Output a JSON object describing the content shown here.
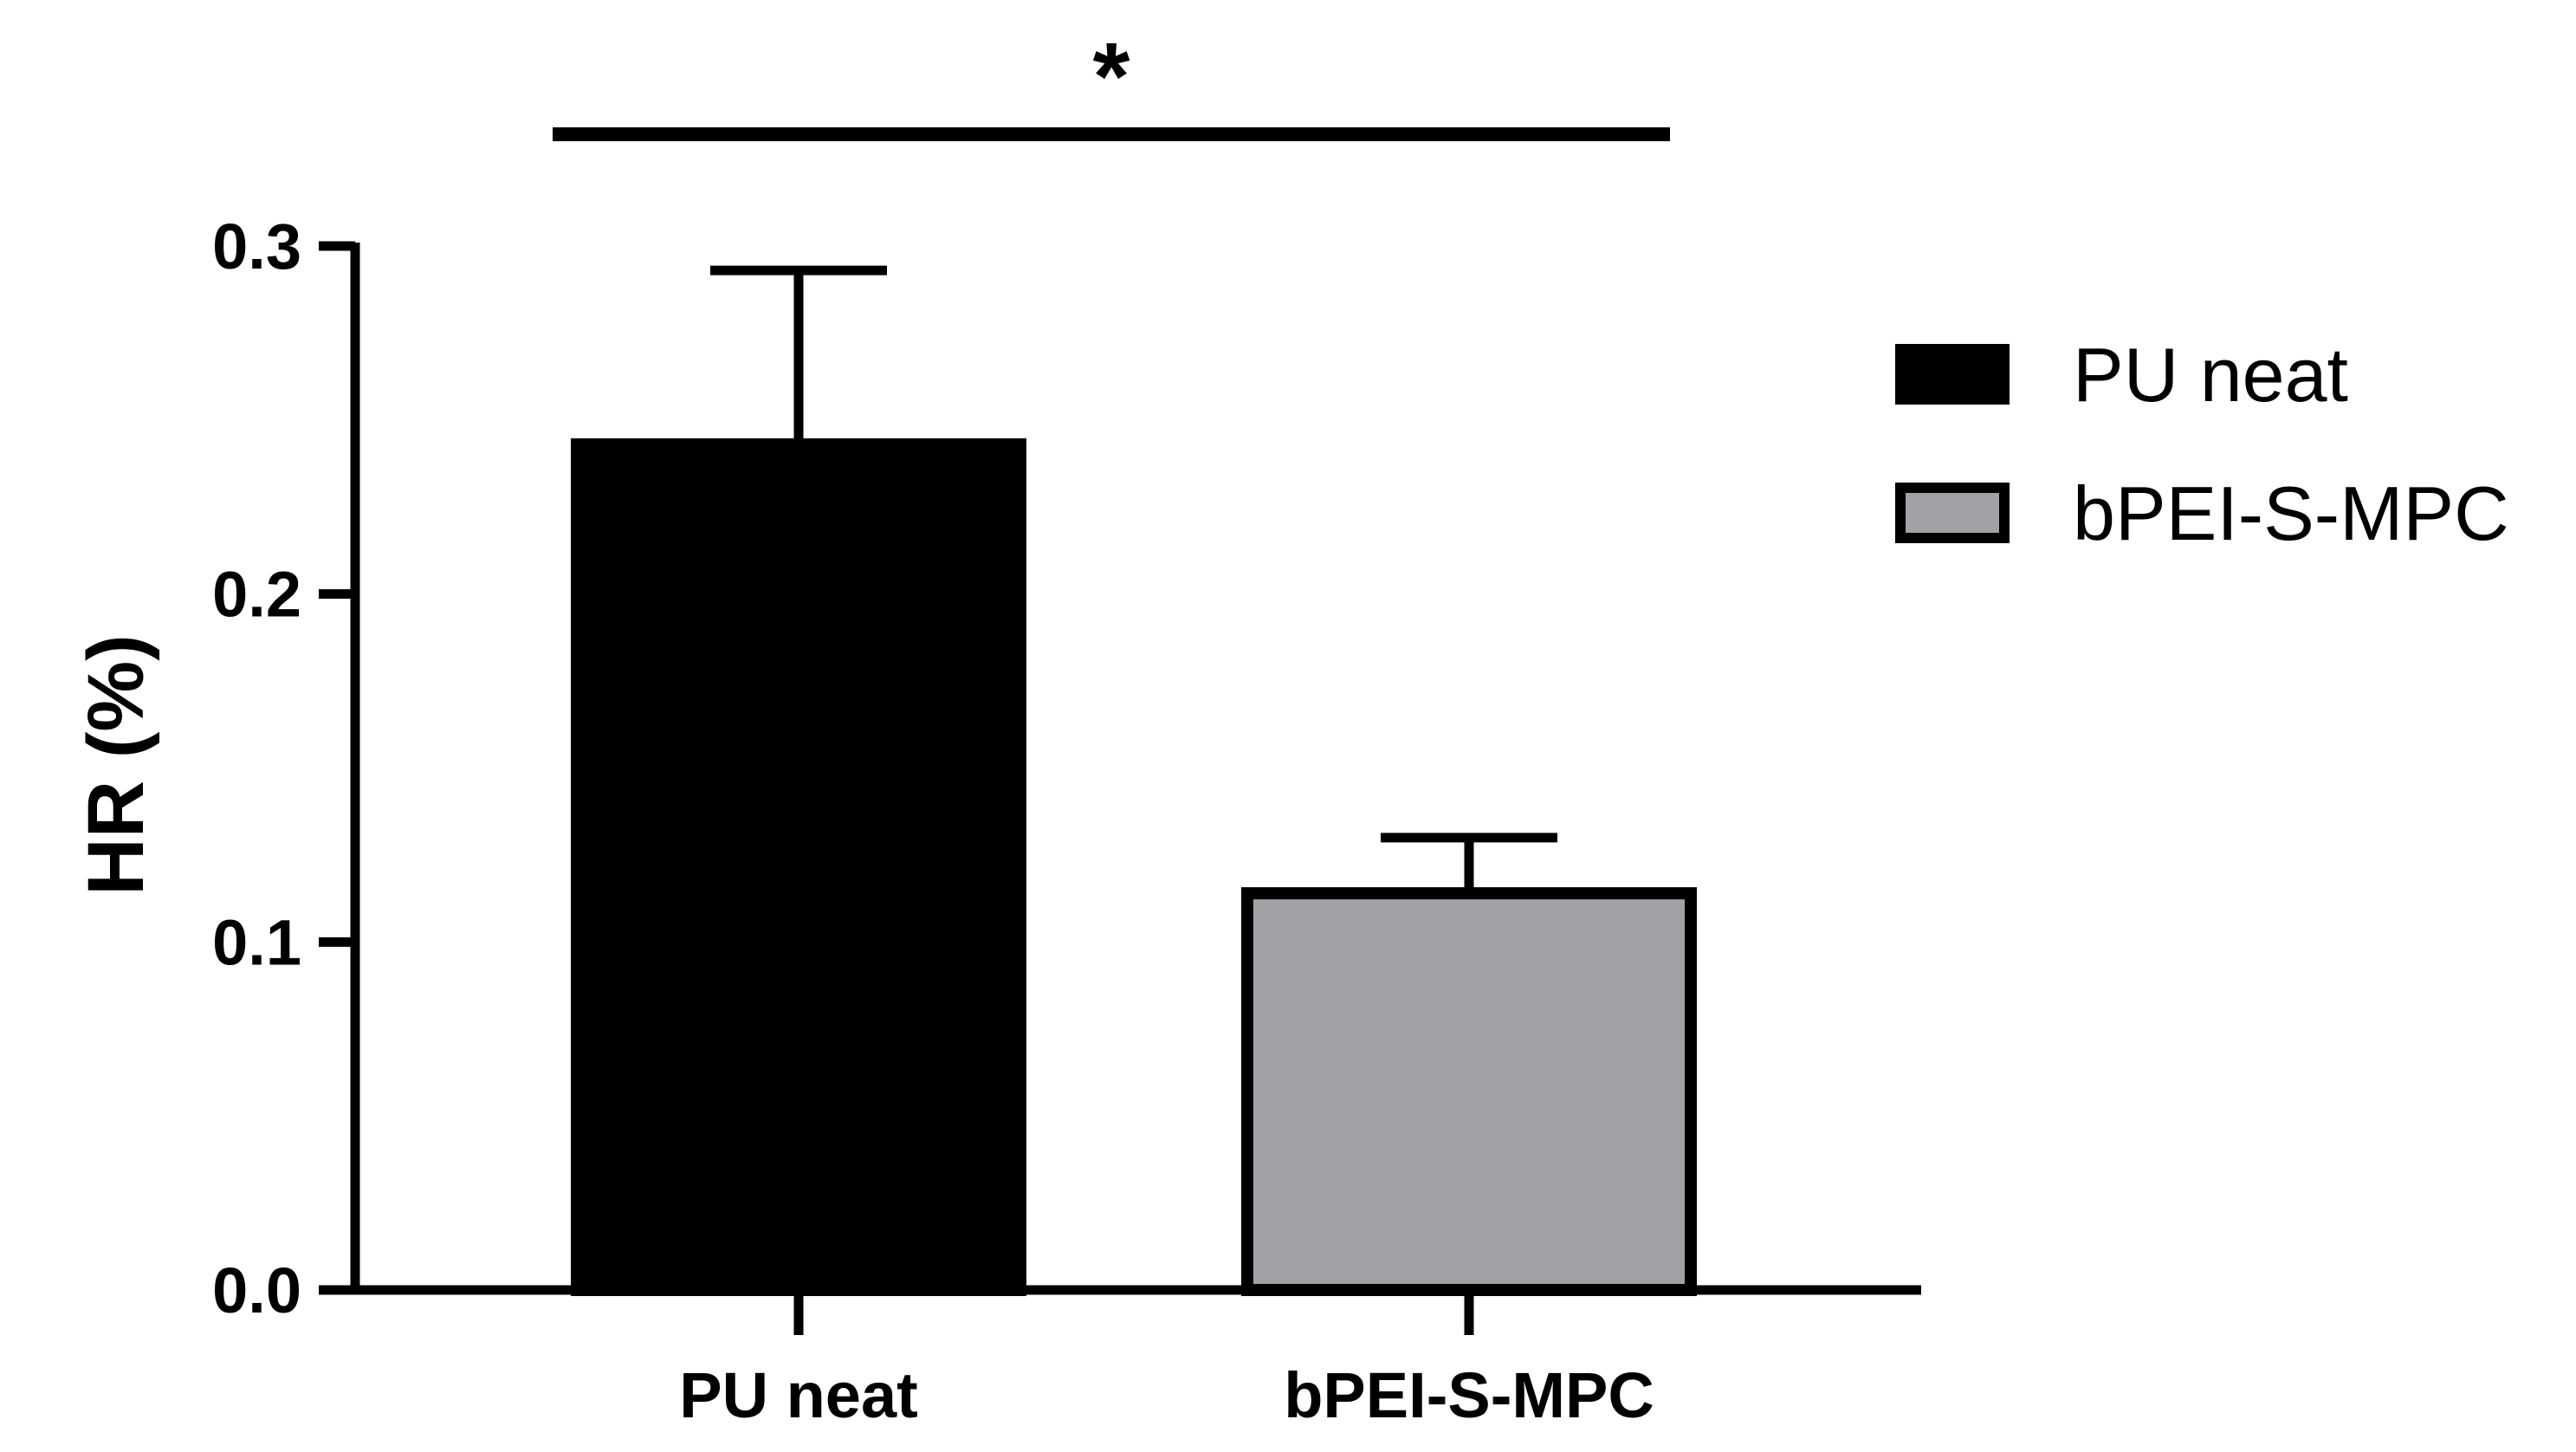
{
  "chart_data": {
    "type": "bar",
    "categories": [
      "PU neat",
      "bPEI-S-MPC"
    ],
    "values": [
      0.243,
      0.114
    ],
    "errors": [
      0.05,
      0.016
    ],
    "colors": [
      "#000000",
      "#a2a2a6"
    ],
    "title": "",
    "xlabel": "",
    "ylabel": "HR (%)",
    "ylim": [
      0,
      0.3
    ],
    "yticks": [
      "0.0",
      "0.1",
      "0.2",
      "0.3"
    ],
    "legend": {
      "placement": "right",
      "entries": [
        {
          "label": "PU neat",
          "color": "#000000"
        },
        {
          "label": "bPEI-S-MPC",
          "color": "#a2a2a6"
        }
      ]
    },
    "significance": {
      "between": [
        "PU neat",
        "bPEI-S-MPC"
      ],
      "label": "*"
    },
    "grid": false
  }
}
